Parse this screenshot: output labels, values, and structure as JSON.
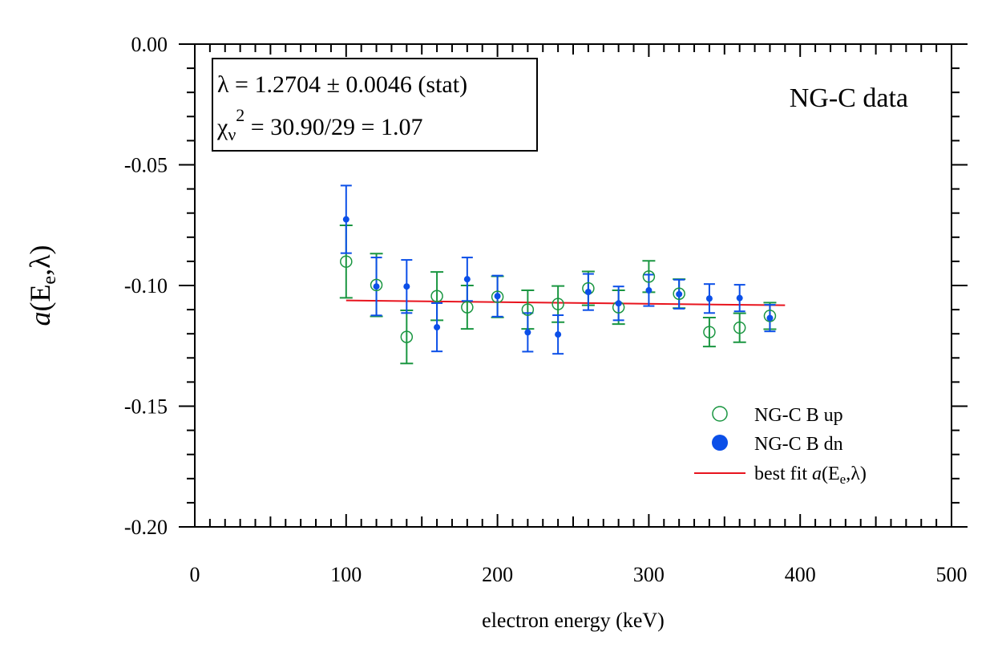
{
  "chart_data": {
    "type": "scatter",
    "title": "",
    "xlabel": "electron energy (keV)",
    "ylabel": {
      "italic": "a",
      "text_a": "(E",
      "sub": "e",
      "text_b": ",λ)"
    },
    "xlim": [
      0,
      500
    ],
    "ylim": [
      -0.2,
      0.0
    ],
    "x_ticks": [
      0,
      100,
      200,
      300,
      400,
      500
    ],
    "x_tick_labels": [
      "0",
      "100",
      "200",
      "300",
      "400",
      "500"
    ],
    "y_ticks": [
      0.0,
      -0.05,
      -0.1,
      -0.15,
      -0.2
    ],
    "y_tick_labels": [
      "0.00",
      "-0.05",
      "-0.10",
      "-0.15",
      "-0.20"
    ],
    "x_minor_step": 10,
    "y_minor_step": 0.01,
    "grid": false,
    "legend_position": "bottom-right",
    "series": [
      {
        "name": "NG-C B up",
        "marker": "open-circle",
        "color": "#1a9641",
        "x": [
          100,
          120,
          140,
          160,
          180,
          200,
          220,
          240,
          260,
          280,
          300,
          320,
          340,
          360,
          380
        ],
        "y": [
          -0.0901,
          -0.0998,
          -0.1213,
          -0.1044,
          -0.109,
          -0.1047,
          -0.11,
          -0.1077,
          -0.1012,
          -0.109,
          -0.0963,
          -0.1034,
          -0.1193,
          -0.1175,
          -0.1126
        ],
        "yerr": [
          0.015,
          0.013,
          0.011,
          0.01,
          0.009,
          0.0085,
          0.008,
          0.0075,
          0.007,
          0.007,
          0.0065,
          0.006,
          0.006,
          0.006,
          0.0055
        ]
      },
      {
        "name": "NG-C B dn",
        "marker": "filled-circle",
        "color": "#0b4fe8",
        "x": [
          100,
          120,
          140,
          160,
          180,
          200,
          220,
          240,
          260,
          280,
          300,
          320,
          340,
          360,
          380
        ],
        "y": [
          -0.0726,
          -0.1004,
          -0.1004,
          -0.1173,
          -0.0974,
          -0.1044,
          -0.1194,
          -0.1203,
          -0.1027,
          -0.1074,
          -0.102,
          -0.1036,
          -0.1054,
          -0.1052,
          -0.1135
        ],
        "yerr": [
          0.014,
          0.012,
          0.011,
          0.01,
          0.009,
          0.0085,
          0.008,
          0.008,
          0.0075,
          0.007,
          0.0065,
          0.006,
          0.006,
          0.0055,
          0.0055
        ]
      }
    ],
    "fit_line": {
      "name_text": "best fit ",
      "name_italic": "a",
      "name_a": "(E",
      "name_sub": "e",
      "name_b": ",λ)",
      "color": "#e8141e",
      "x": [
        100,
        390
      ],
      "y": [
        -0.1062,
        -0.1082
      ]
    },
    "annotation": "NG-C data",
    "stat_box": {
      "line1": "λ = 1.2704 ± 0.0046 (stat)",
      "line2_a": "χ",
      "line2_sub": "ν",
      "line2_sup": "2",
      "line2_b": " = 30.90/29 = 1.07"
    }
  }
}
